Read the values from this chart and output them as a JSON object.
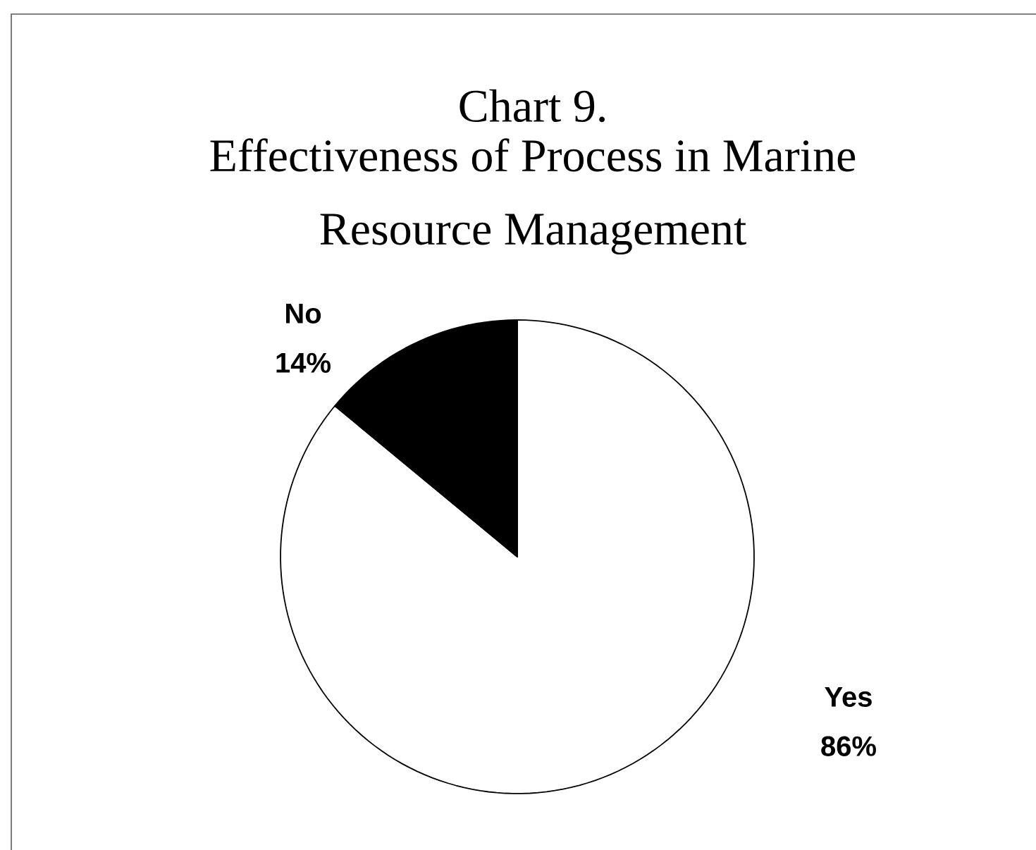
{
  "chart_data": {
    "type": "pie",
    "title": "Chart 9.",
    "subtitle": "Effectiveness of Process in Marine Resource Management",
    "categories": [
      "Yes",
      "No"
    ],
    "values": [
      86,
      14
    ],
    "value_labels": [
      "86%",
      "14%"
    ],
    "colors": [
      "#ffffff",
      "#000000"
    ]
  }
}
